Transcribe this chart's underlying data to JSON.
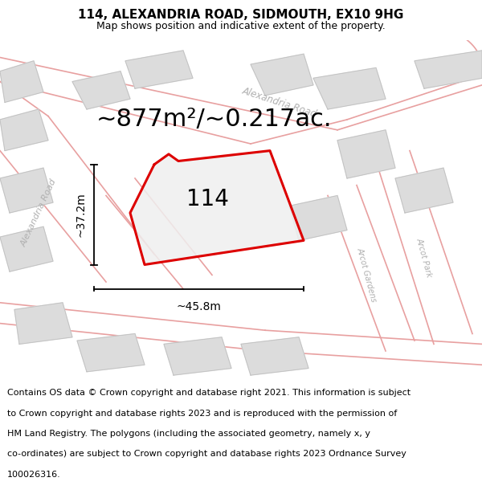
{
  "title": "114, ALEXANDRIA ROAD, SIDMOUTH, EX10 9HG",
  "subtitle": "Map shows position and indicative extent of the property.",
  "area_text": "~877m²/~0.217ac.",
  "width_text": "~45.8m",
  "height_text": "~37.2m",
  "label_114": "114",
  "footer_lines": [
    "Contains OS data © Crown copyright and database right 2021. This information is subject",
    "to Crown copyright and database rights 2023 and is reproduced with the permission of",
    "HM Land Registry. The polygons (including the associated geometry, namely x, y",
    "co-ordinates) are subject to Crown copyright and database rights 2023 Ordnance Survey",
    "100026316."
  ],
  "map_bg": "#f2f2f2",
  "road_line_color": "#e8a0a0",
  "road_line_lw": 1.2,
  "building_fill": "#dcdcdc",
  "building_edge": "#c0c0c0",
  "plot_fill": "#efefef",
  "plot_edge": "#dd0000",
  "plot_lw": 2.2,
  "title_fontsize": 11,
  "subtitle_fontsize": 9,
  "area_fontsize": 22,
  "label_fontsize": 20,
  "measure_fontsize": 10,
  "footer_fontsize": 8,
  "road_label_color": "#b0b0b0",
  "road_label_fontsize": 8
}
